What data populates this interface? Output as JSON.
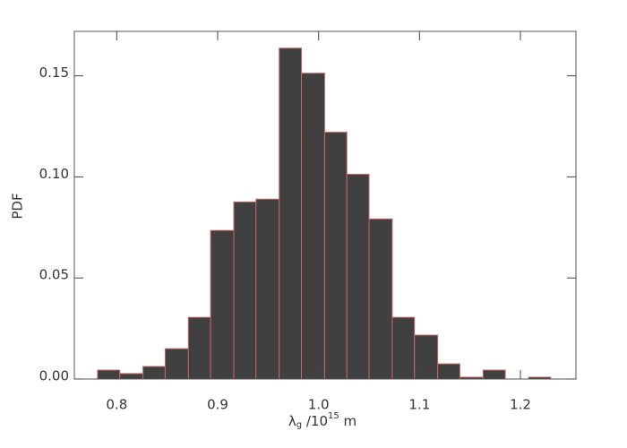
{
  "chart_data": {
    "type": "histogram",
    "bins": [
      0.781,
      0.803,
      0.826,
      0.848,
      0.871,
      0.893,
      0.916,
      0.938,
      0.961,
      0.983,
      1.006,
      1.028,
      1.05,
      1.073,
      1.095,
      1.118,
      1.14,
      1.163,
      1.185,
      1.208,
      1.23
    ],
    "values": [
      0.0044,
      0.0027,
      0.0062,
      0.015,
      0.0305,
      0.0735,
      0.0876,
      0.089,
      0.1637,
      0.1513,
      0.1221,
      0.1013,
      0.0792,
      0.0305,
      0.0217,
      0.0075,
      0.0009,
      0.0044,
      0,
      0.0009
    ],
    "color": "#404040",
    "edgecolor": "#c86464",
    "xlim": [
      0.758,
      1.255
    ],
    "ylim": [
      0,
      0.172
    ],
    "xticks": [
      0.8,
      0.9,
      {
        "value": 1.0,
        "label": "1.0"
      },
      1.1,
      1.2
    ],
    "yticks": [
      {
        "value": 0,
        "label": "0.00"
      },
      0.05,
      {
        "value": 0.1,
        "label": "0.10"
      },
      0.15
    ],
    "ylabel": "PDF",
    "xlabel": {
      "symbol": "λ",
      "sub": "g",
      "text": " /10",
      "sup": "15",
      "unit": " m"
    }
  }
}
